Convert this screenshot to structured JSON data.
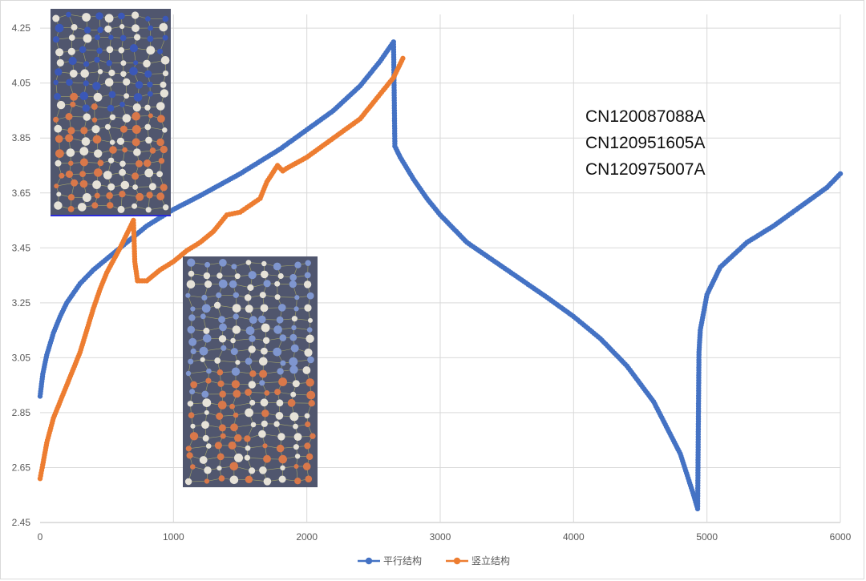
{
  "chart_data": {
    "type": "line",
    "title": "",
    "xlabel": "",
    "ylabel": "",
    "xlim": [
      0,
      6000
    ],
    "ylim": [
      2.45,
      4.3
    ],
    "x_ticks": [
      0,
      1000,
      2000,
      3000,
      4000,
      5000,
      6000
    ],
    "y_ticks": [
      2.45,
      2.65,
      2.85,
      3.05,
      3.25,
      3.45,
      3.65,
      3.85,
      4.05,
      4.25
    ],
    "x_tick_labels": [
      "0",
      "1000",
      "2000",
      "3000",
      "4000",
      "5000",
      "6000"
    ],
    "y_tick_labels": [
      "2.45",
      "2.65",
      "2.85",
      "3.05",
      "3.25",
      "3.45",
      "3.65",
      "3.85",
      "4.05",
      "4.25"
    ],
    "grid": true,
    "legend_position": "bottom",
    "series": [
      {
        "name": "平行结构",
        "color": "#4472C4",
        "points": [
          [
            0,
            2.91
          ],
          [
            20,
            2.99
          ],
          [
            50,
            3.06
          ],
          [
            100,
            3.14
          ],
          [
            150,
            3.2
          ],
          [
            200,
            3.25
          ],
          [
            300,
            3.32
          ],
          [
            400,
            3.37
          ],
          [
            500,
            3.41
          ],
          [
            600,
            3.45
          ],
          [
            700,
            3.49
          ],
          [
            800,
            3.53
          ],
          [
            1000,
            3.59
          ],
          [
            1200,
            3.64
          ],
          [
            1500,
            3.72
          ],
          [
            1800,
            3.81
          ],
          [
            2000,
            3.88
          ],
          [
            2200,
            3.95
          ],
          [
            2400,
            4.04
          ],
          [
            2550,
            4.13
          ],
          [
            2650,
            4.2
          ],
          [
            2660,
            3.82
          ],
          [
            2700,
            3.78
          ],
          [
            2800,
            3.7
          ],
          [
            2900,
            3.63
          ],
          [
            3000,
            3.57
          ],
          [
            3200,
            3.47
          ],
          [
            3500,
            3.37
          ],
          [
            3800,
            3.27
          ],
          [
            4000,
            3.2
          ],
          [
            4200,
            3.12
          ],
          [
            4400,
            3.02
          ],
          [
            4600,
            2.89
          ],
          [
            4800,
            2.7
          ],
          [
            4900,
            2.55
          ],
          [
            4930,
            2.5
          ],
          [
            4940,
            3.07
          ],
          [
            4950,
            3.15
          ],
          [
            5000,
            3.28
          ],
          [
            5100,
            3.38
          ],
          [
            5300,
            3.47
          ],
          [
            5500,
            3.53
          ],
          [
            5700,
            3.6
          ],
          [
            5900,
            3.67
          ],
          [
            6000,
            3.72
          ]
        ]
      },
      {
        "name": "竖立结构",
        "color": "#ED7D31",
        "points": [
          [
            0,
            2.61
          ],
          [
            20,
            2.66
          ],
          [
            50,
            2.74
          ],
          [
            100,
            2.83
          ],
          [
            200,
            2.95
          ],
          [
            300,
            3.07
          ],
          [
            400,
            3.23
          ],
          [
            450,
            3.3
          ],
          [
            500,
            3.36
          ],
          [
            600,
            3.45
          ],
          [
            700,
            3.55
          ],
          [
            710,
            3.4
          ],
          [
            730,
            3.33
          ],
          [
            800,
            3.33
          ],
          [
            900,
            3.37
          ],
          [
            1000,
            3.4
          ],
          [
            1100,
            3.44
          ],
          [
            1200,
            3.47
          ],
          [
            1300,
            3.51
          ],
          [
            1400,
            3.57
          ],
          [
            1500,
            3.58
          ],
          [
            1650,
            3.63
          ],
          [
            1700,
            3.69
          ],
          [
            1780,
            3.75
          ],
          [
            1820,
            3.73
          ],
          [
            1850,
            3.74
          ],
          [
            2000,
            3.78
          ],
          [
            2200,
            3.85
          ],
          [
            2400,
            3.92
          ],
          [
            2550,
            4.01
          ],
          [
            2650,
            4.07
          ],
          [
            2720,
            4.14
          ]
        ]
      }
    ],
    "annotations": [
      "CN120087088A",
      "CN120951605A",
      "CN120975007A"
    ],
    "inset_images": [
      "layered crystal structure render (top-left)",
      "vertical crystal structure render (center-left)"
    ]
  }
}
